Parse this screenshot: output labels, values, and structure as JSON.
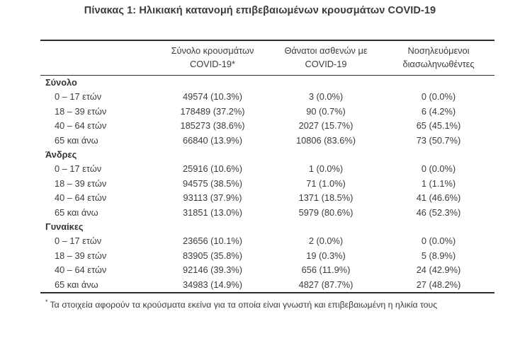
{
  "title": "Πίνακας 1: Ηλικιακή κατανομή επιβεβαιωμένων κρουσμάτων COVID-19",
  "table": {
    "columns": {
      "cases": {
        "line1": "Σύνολο κρουσμάτων",
        "line2": "COVID-19*"
      },
      "deaths": {
        "line1": "Θάνατοι ασθενών με",
        "line2": "COVID-19"
      },
      "intubated": {
        "line1": "Νοσηλευόμενοι",
        "line2": "διασωληνωθέντες"
      }
    },
    "sections": [
      {
        "label": "Σύνολο",
        "rows": [
          {
            "age": "0 – 17 ετών",
            "cases": "49574 (10.3%)",
            "deaths": "3 (0.0%)",
            "intubated": "0 (0.0%)"
          },
          {
            "age": "18 – 39 ετών",
            "cases": "178489 (37.2%)",
            "deaths": "90 (0.7%)",
            "intubated": "6 (4.2%)"
          },
          {
            "age": "40 – 64 ετών",
            "cases": "185273 (38.6%)",
            "deaths": "2027 (15.7%)",
            "intubated": "65 (45.1%)"
          },
          {
            "age": "65 και άνω",
            "cases": "66840 (13.9%)",
            "deaths": "10806 (83.6%)",
            "intubated": "73 (50.7%)"
          }
        ]
      },
      {
        "label": "Άνδρες",
        "rows": [
          {
            "age": "0 – 17 ετών",
            "cases": "25916 (10.6%)",
            "deaths": "1 (0.0%)",
            "intubated": "0 (0.0%)"
          },
          {
            "age": "18 – 39 ετών",
            "cases": "94575 (38.5%)",
            "deaths": "71 (1.0%)",
            "intubated": "1 (1.1%)"
          },
          {
            "age": "40 – 64 ετών",
            "cases": "93113 (37.9%)",
            "deaths": "1371 (18.5%)",
            "intubated": "41 (46.6%)"
          },
          {
            "age": "65 και άνω",
            "cases": "31851 (13.0%)",
            "deaths": "5979 (80.6%)",
            "intubated": "46 (52.3%)"
          }
        ]
      },
      {
        "label": "Γυναίκες",
        "rows": [
          {
            "age": "0 – 17 ετών",
            "cases": "23656 (10.1%)",
            "deaths": "2 (0.0%)",
            "intubated": "0 (0.0%)"
          },
          {
            "age": "18 – 39 ετών",
            "cases": "83905 (35.8%)",
            "deaths": "19 (0.3%)",
            "intubated": "5 (8.9%)"
          },
          {
            "age": "40 – 64 ετών",
            "cases": "92146 (39.3%)",
            "deaths": "656 (11.9%)",
            "intubated": "24 (42.9%)"
          },
          {
            "age": "65 και άνω",
            "cases": "34983 (14.9%)",
            "deaths": "4827 (87.7%)",
            "intubated": "27 (48.2%)"
          }
        ]
      }
    ]
  },
  "footnote": {
    "marker": "*",
    "text": "Τα στοιχεία αφορούν τα κρούσματα εκείνα για τα οποία είναι γνωστή και επιβεβαιωμένη η ηλικία τους"
  },
  "colors": {
    "text": "#3b3b3b",
    "rule": "#2d2d2d",
    "background": "#ffffff"
  }
}
